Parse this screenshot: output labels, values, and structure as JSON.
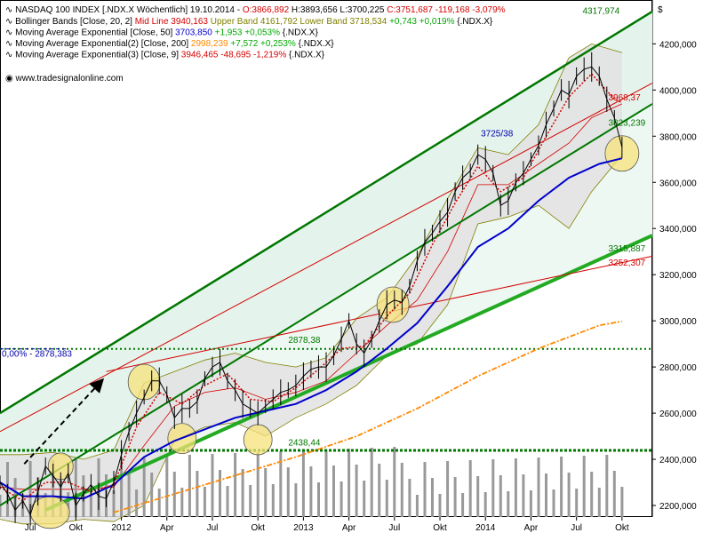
{
  "chart_data": {
    "type": "line",
    "title": "NASDAQ 100 INDEX [.NDX.X  Wöchentlich]",
    "ohlc_header": {
      "date": "19.10.2014",
      "open": "O:3866,892",
      "high": "H:3893,656",
      "low": "L:3700,225",
      "close": "C:3751,687",
      "change": "-119,168",
      "change_pct": "-3,079%"
    },
    "indicators": [
      {
        "label": "Bollinger Bands [Close, 20, 2]",
        "parts": [
          {
            "text": "Mid Line 3940,163",
            "color": "#d40000"
          },
          {
            "text": "Upper Band 4161,792",
            "color": "#808000"
          },
          {
            "text": "Lower Band 3718,534",
            "color": "#808000"
          },
          {
            "text": "+0,743 +0,019%",
            "color": "#00aa00"
          },
          {
            "text": "{.NDX.X}",
            "color": "#000000"
          }
        ]
      },
      {
        "label": "Moving Average Exponential [Close, 50]",
        "parts": [
          {
            "text": "3703,850",
            "color": "#0000cc"
          },
          {
            "text": "+1,953 +0,053%",
            "color": "#00aa00"
          },
          {
            "text": "{.NDX.X}",
            "color": "#000000"
          }
        ]
      },
      {
        "label": "Moving Average Exponential(2) [Close, 200]",
        "parts": [
          {
            "text": "2998,239",
            "color": "#ff8800"
          },
          {
            "text": "+7,572 +0,253%",
            "color": "#00aa00"
          },
          {
            "text": "{.NDX.X}",
            "color": "#000000"
          }
        ]
      },
      {
        "label": "Moving Average Exponential(3) [Close, 9]",
        "parts": [
          {
            "text": "3946,465",
            "color": "#d40000"
          },
          {
            "text": "-48,695 -1,219%",
            "color": "#d40000"
          },
          {
            "text": "{.NDX.X}",
            "color": "#000000"
          }
        ]
      }
    ],
    "source": "www.tradesignalonline.com",
    "currency_label": "$",
    "y_ticks": [
      2200,
      2400,
      2600,
      2800,
      3000,
      3200,
      3400,
      3600,
      3800,
      4000,
      4200
    ],
    "y_tick_labels": [
      "2200,000",
      "2400,000",
      "2600,000",
      "2800,000",
      "3000,000",
      "3200,000",
      "3400,000",
      "3600,000",
      "3800,000",
      "4000,000",
      "4200,000"
    ],
    "ylim": [
      2150,
      4390
    ],
    "x_ticks": [
      {
        "label": "Jul",
        "t": 0.5
      },
      {
        "label": "Okt",
        "t": 3.5
      },
      {
        "label": "2012",
        "t": 6.5
      },
      {
        "label": "Apr",
        "t": 9.5
      },
      {
        "label": "Jul",
        "t": 12.5
      },
      {
        "label": "Okt",
        "t": 15.5
      },
      {
        "label": "2013",
        "t": 18.5
      },
      {
        "label": "Apr",
        "t": 21.5
      },
      {
        "label": "Jul",
        "t": 24.5
      },
      {
        "label": "Okt",
        "t": 27.5
      },
      {
        "label": "2014",
        "t": 30.5
      },
      {
        "label": "Apr",
        "t": 33.5
      },
      {
        "label": "Jul",
        "t": 36.5
      },
      {
        "label": "Okt",
        "t": 39.5
      }
    ],
    "xlim": [
      -1.5,
      41.5
    ],
    "price_path": [
      [
        -1.5,
        2300
      ],
      [
        -1,
        2250
      ],
      [
        -0.5,
        2180
      ],
      [
        0,
        2220
      ],
      [
        0.5,
        2160
      ],
      [
        1,
        2260
      ],
      [
        1.5,
        2370
      ],
      [
        2,
        2330
      ],
      [
        2.5,
        2280
      ],
      [
        3,
        2340
      ],
      [
        3.5,
        2200
      ],
      [
        4,
        2250
      ],
      [
        4.5,
        2290
      ],
      [
        5,
        2240
      ],
      [
        5.5,
        2230
      ],
      [
        6,
        2300
      ],
      [
        6.5,
        2420
      ],
      [
        7,
        2520
      ],
      [
        7.5,
        2600
      ],
      [
        8,
        2670
      ],
      [
        8.5,
        2740
      ],
      [
        9,
        2740
      ],
      [
        9.5,
        2680
      ],
      [
        10,
        2580
      ],
      [
        10.5,
        2620
      ],
      [
        11,
        2620
      ],
      [
        11.5,
        2650
      ],
      [
        12,
        2750
      ],
      [
        12.5,
        2800
      ],
      [
        13,
        2820
      ],
      [
        13.5,
        2740
      ],
      [
        14,
        2700
      ],
      [
        14.5,
        2640
      ],
      [
        15,
        2620
      ],
      [
        15.5,
        2600
      ],
      [
        16,
        2630
      ],
      [
        16.5,
        2660
      ],
      [
        17,
        2690
      ],
      [
        17.5,
        2700
      ],
      [
        18,
        2720
      ],
      [
        18.5,
        2760
      ],
      [
        19,
        2790
      ],
      [
        19.5,
        2800
      ],
      [
        20,
        2800
      ],
      [
        20.5,
        2850
      ],
      [
        21,
        2920
      ],
      [
        21.5,
        3000
      ],
      [
        22,
        2900
      ],
      [
        22.5,
        2860
      ],
      [
        23,
        2920
      ],
      [
        23.5,
        3000
      ],
      [
        24,
        3070
      ],
      [
        24.5,
        3090
      ],
      [
        25,
        3080
      ],
      [
        25.5,
        3150
      ],
      [
        26,
        3260
      ],
      [
        26.5,
        3340
      ],
      [
        27,
        3380
      ],
      [
        27.5,
        3430
      ],
      [
        28,
        3470
      ],
      [
        28.5,
        3560
      ],
      [
        29,
        3620
      ],
      [
        29.5,
        3650
      ],
      [
        30,
        3720
      ],
      [
        30.5,
        3700
      ],
      [
        31,
        3640
      ],
      [
        31.5,
        3500
      ],
      [
        32,
        3520
      ],
      [
        32.5,
        3600
      ],
      [
        33,
        3640
      ],
      [
        33.5,
        3700
      ],
      [
        34,
        3760
      ],
      [
        34.5,
        3850
      ],
      [
        35,
        3920
      ],
      [
        35.5,
        4000
      ],
      [
        36,
        3980
      ],
      [
        36.5,
        4060
      ],
      [
        37,
        4090
      ],
      [
        37.5,
        4100
      ],
      [
        38,
        4060
      ],
      [
        38.5,
        3960
      ],
      [
        39,
        3880
      ],
      [
        39.5,
        3752
      ]
    ],
    "ema9_path": [
      [
        -1.5,
        2280
      ],
      [
        0,
        2220
      ],
      [
        1.5,
        2300
      ],
      [
        3,
        2300
      ],
      [
        4.5,
        2260
      ],
      [
        6,
        2290
      ],
      [
        7.5,
        2540
      ],
      [
        9,
        2690
      ],
      [
        10.5,
        2640
      ],
      [
        12,
        2720
      ],
      [
        13.5,
        2770
      ],
      [
        15,
        2660
      ],
      [
        16.5,
        2650
      ],
      [
        18,
        2710
      ],
      [
        19.5,
        2790
      ],
      [
        21,
        2880
      ],
      [
        22.5,
        2890
      ],
      [
        24,
        3020
      ],
      [
        25.5,
        3120
      ],
      [
        27,
        3330
      ],
      [
        28.5,
        3510
      ],
      [
        30,
        3670
      ],
      [
        31.5,
        3560
      ],
      [
        33,
        3620
      ],
      [
        34.5,
        3800
      ],
      [
        36,
        3970
      ],
      [
        37.5,
        4070
      ],
      [
        39,
        3960
      ],
      [
        39.5,
        3946
      ]
    ],
    "ema50_path": [
      [
        -1.5,
        2300
      ],
      [
        0,
        2240
      ],
      [
        2,
        2240
      ],
      [
        4,
        2230
      ],
      [
        6,
        2290
      ],
      [
        8,
        2410
      ],
      [
        10,
        2480
      ],
      [
        12,
        2530
      ],
      [
        14,
        2580
      ],
      [
        16,
        2610
      ],
      [
        18,
        2640
      ],
      [
        20,
        2700
      ],
      [
        22,
        2780
      ],
      [
        24,
        2880
      ],
      [
        26,
        2990
      ],
      [
        28,
        3150
      ],
      [
        30,
        3320
      ],
      [
        32,
        3400
      ],
      [
        34,
        3520
      ],
      [
        36,
        3620
      ],
      [
        38,
        3680
      ],
      [
        39.5,
        3704
      ]
    ],
    "ema200_path": [
      [
        6,
        2170
      ],
      [
        10,
        2250
      ],
      [
        14,
        2330
      ],
      [
        18,
        2410
      ],
      [
        22,
        2500
      ],
      [
        26,
        2620
      ],
      [
        30,
        2760
      ],
      [
        34,
        2880
      ],
      [
        38,
        2980
      ],
      [
        39.5,
        2998
      ]
    ],
    "bb_upper_path": [
      [
        -1.5,
        2420
      ],
      [
        0,
        2420
      ],
      [
        2,
        2430
      ],
      [
        4,
        2400
      ],
      [
        6,
        2440
      ],
      [
        8,
        2730
      ],
      [
        10,
        2780
      ],
      [
        12,
        2830
      ],
      [
        14,
        2860
      ],
      [
        16,
        2820
      ],
      [
        18,
        2800
      ],
      [
        20,
        2840
      ],
      [
        22,
        3010
      ],
      [
        24,
        3100
      ],
      [
        26,
        3280
      ],
      [
        28,
        3530
      ],
      [
        30,
        3750
      ],
      [
        32,
        3720
      ],
      [
        34,
        3850
      ],
      [
        36,
        4140
      ],
      [
        37.5,
        4200
      ],
      [
        39.5,
        4162
      ]
    ],
    "bb_lower_path": [
      [
        -1.5,
        2140
      ],
      [
        0,
        2120
      ],
      [
        2,
        2120
      ],
      [
        4,
        2140
      ],
      [
        6,
        2130
      ],
      [
        8,
        2200
      ],
      [
        10,
        2480
      ],
      [
        12,
        2540
      ],
      [
        14,
        2560
      ],
      [
        16,
        2500
      ],
      [
        18,
        2580
      ],
      [
        20,
        2640
      ],
      [
        22,
        2720
      ],
      [
        24,
        2850
      ],
      [
        26,
        2900
      ],
      [
        28,
        3070
      ],
      [
        30,
        3420
      ],
      [
        32,
        3450
      ],
      [
        34,
        3500
      ],
      [
        36,
        3400
      ],
      [
        37.5,
        3560
      ],
      [
        39.5,
        3719
      ]
    ],
    "bb_mid_path": [
      [
        -1.5,
        2280
      ],
      [
        0,
        2270
      ],
      [
        2,
        2270
      ],
      [
        4,
        2270
      ],
      [
        6,
        2280
      ],
      [
        8,
        2460
      ],
      [
        10,
        2630
      ],
      [
        12,
        2690
      ],
      [
        14,
        2710
      ],
      [
        16,
        2660
      ],
      [
        18,
        2690
      ],
      [
        20,
        2740
      ],
      [
        22,
        2860
      ],
      [
        24,
        2980
      ],
      [
        26,
        3090
      ],
      [
        28,
        3300
      ],
      [
        30,
        3590
      ],
      [
        32,
        3590
      ],
      [
        34,
        3680
      ],
      [
        36,
        3770
      ],
      [
        37.5,
        3880
      ],
      [
        39.5,
        3940
      ]
    ],
    "trend_lines": [
      {
        "name": "upper-channel-line",
        "color": "#007700",
        "width": 2.5,
        "points": [
          [
            -1.5,
            2600
          ],
          [
            41.5,
            4340
          ]
        ]
      },
      {
        "name": "mid-channel-line",
        "color": "#007700",
        "width": 2,
        "points": [
          [
            -1.5,
            2200
          ],
          [
            41.5,
            3940
          ]
        ]
      },
      {
        "name": "lower-channel-line",
        "color": "#22aa22",
        "width": 4,
        "points": [
          [
            1.5,
            2180
          ],
          [
            41.5,
            3370
          ]
        ]
      },
      {
        "name": "red-resistance-upper",
        "color": "#d40000",
        "width": 1,
        "points": [
          [
            -1.5,
            2520
          ],
          [
            41.5,
            4030
          ]
        ]
      },
      {
        "name": "red-resistance-lower",
        "color": "#d40000",
        "width": 1,
        "points": [
          [
            5.5,
            2780
          ],
          [
            41.5,
            3280
          ]
        ]
      }
    ],
    "horizontal_lines": [
      {
        "name": "hline-2878",
        "value": 2878.38,
        "color": "#007700",
        "dash": "2,3",
        "width": 2,
        "from": -1.5
      },
      {
        "name": "hline-2438",
        "value": 2438.44,
        "color": "#007700",
        "dash": "3,2",
        "width": 3,
        "from": -1.5
      },
      {
        "name": "hline-2878-blue",
        "value": 2878.38,
        "color": "#0000aa",
        "dash": "4,3",
        "width": 1,
        "from": -1.5,
        "to": 3
      }
    ],
    "annotations": [
      {
        "text": "4317,974",
        "t": 36.9,
        "v": 4330,
        "color": "#007700"
      },
      {
        "text": "3968,37",
        "t": 38.6,
        "v": 3955,
        "color": "#d40000"
      },
      {
        "text": "3823,239",
        "t": 38.6,
        "v": 3845,
        "color": "#007700"
      },
      {
        "text": "3725/38",
        "t": 30.2,
        "v": 3800,
        "color": "#0000aa"
      },
      {
        "text": "3315,887",
        "t": 38.6,
        "v": 3300,
        "color": "#007700"
      },
      {
        "text": "3252,307",
        "t": 38.6,
        "v": 3240,
        "color": "#d40000"
      },
      {
        "text": "2878,38",
        "t": 17.5,
        "v": 2905,
        "color": "#007700"
      },
      {
        "text": "2438,44",
        "t": 17.5,
        "v": 2460,
        "color": "#007700"
      },
      {
        "text": "0,00% - 2878,383",
        "t": -1.5,
        "v": 2845,
        "color": "#0000aa"
      }
    ],
    "circles": [
      {
        "name": "highlight-circle-2012-top",
        "t": 8.0,
        "v": 2735,
        "rx": 18,
        "ry": 20
      },
      {
        "name": "highlight-circle-2012-low",
        "t": 10.5,
        "v": 2490,
        "rx": 16,
        "ry": 17
      },
      {
        "name": "highlight-circle-2012-okt",
        "t": 15.5,
        "v": 2485,
        "rx": 16,
        "ry": 17
      },
      {
        "name": "highlight-circle-2013-jul",
        "t": 24.4,
        "v": 3070,
        "rx": 18,
        "ry": 20
      },
      {
        "name": "highlight-circle-2014-okt",
        "t": 39.5,
        "v": 3725,
        "rx": 19,
        "ry": 20
      },
      {
        "name": "highlight-circle-2011-okt",
        "t": 2.5,
        "v": 2370,
        "rx": 14,
        "ry": 15
      },
      {
        "name": "highlight-circle-2011-low",
        "t": 1.8,
        "v": 2170,
        "rx": 22,
        "ry": 18
      }
    ],
    "arrow": {
      "from": [
        0.1,
        2380
      ],
      "to": [
        5.2,
        2740
      ],
      "color": "#000000"
    },
    "legend_placement": "top-left",
    "grid": false
  },
  "colors": {
    "channel_fill": "#e4f4ec",
    "bb_fill": "#e2e2e2",
    "price": "#000000",
    "ema9": "#d40000",
    "ema50": "#0000cc",
    "ema200": "#ff8800",
    "volume": "#999999",
    "circle_fill": "#f7e37a"
  }
}
